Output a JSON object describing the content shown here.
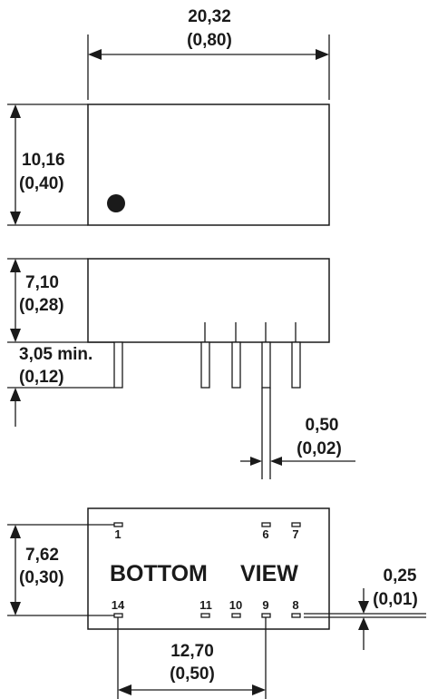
{
  "dimensions": {
    "length": {
      "mm": "20,32",
      "inch": "(0,80)"
    },
    "width": {
      "mm": "10,16",
      "inch": "(0,40)"
    },
    "height": {
      "mm": "7,10",
      "inch": "(0,28)"
    },
    "pin_length": {
      "mm": "3,05 min.",
      "inch": "(0,12)"
    },
    "pin_width": {
      "mm": "0,50",
      "inch": "(0,02)"
    },
    "row_spacing": {
      "mm": "7,62",
      "inch": "(0,30)"
    },
    "pad_size": {
      "mm": "0,25",
      "inch": "(0,01)"
    },
    "pin_span": {
      "mm": "12,70",
      "inch": "(0,50)"
    }
  },
  "bottom_view": {
    "label_left": "BOTTOM",
    "label_right": "VIEW",
    "top_row_pins": [
      "1",
      "6",
      "7"
    ],
    "bottom_row_pins": [
      "14",
      "11",
      "10",
      "9",
      "8"
    ]
  }
}
